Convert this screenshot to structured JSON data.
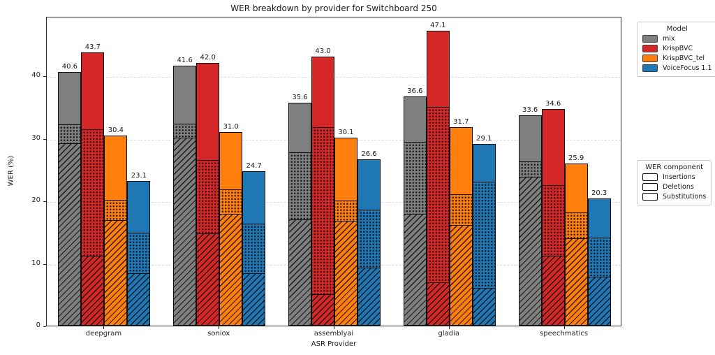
{
  "title": "WER breakdown by provider for Switchboard 250",
  "axes": {
    "xlabel": "ASR Provider",
    "ylabel": "WER (%)",
    "y_ticks": [
      0,
      10,
      20,
      30,
      40
    ]
  },
  "legend_model": {
    "title": "Model",
    "items": [
      {
        "label": "mix",
        "color": "#7f7f7f"
      },
      {
        "label": "KrispBVC",
        "color": "#d62728"
      },
      {
        "label": "KrispBVC_tel",
        "color": "#ff7f0e"
      },
      {
        "label": "VoiceFocus 1.1",
        "color": "#1f77b4"
      }
    ]
  },
  "legend_component": {
    "title": "WER component",
    "items": [
      {
        "label": "Insertions",
        "pattern": "diagonal-hatch"
      },
      {
        "label": "Deletions",
        "pattern": "dots"
      },
      {
        "label": "Substitutions",
        "pattern": "plain"
      }
    ]
  },
  "chart_data": {
    "type": "bar",
    "stacked": true,
    "stack_order_bottom_to_top": [
      "Insertions",
      "Deletions",
      "Substitutions"
    ],
    "categories": [
      "deepgram",
      "soniox",
      "assemblyai",
      "gladia",
      "speechmatics"
    ],
    "title": "WER breakdown by provider for Switchboard 250",
    "xlabel": "ASR Provider",
    "ylabel": "WER (%)",
    "ylim": [
      0,
      49.5
    ],
    "grid": true,
    "legend_position": "outside-right",
    "series": [
      {
        "name": "mix",
        "color": "#7f7f7f",
        "totals": [
          40.6,
          41.6,
          35.6,
          36.6,
          33.6
        ],
        "components": {
          "Insertions": [
            29.2,
            30.1,
            17.0,
            17.9,
            23.9
          ],
          "Deletions": [
            3.1,
            2.2,
            10.8,
            11.6,
            2.4
          ],
          "Substitutions": [
            8.3,
            9.3,
            7.8,
            7.1,
            7.3
          ]
        }
      },
      {
        "name": "KrispBVC",
        "color": "#d62728",
        "totals": [
          43.7,
          42.0,
          43.0,
          47.1,
          34.6
        ],
        "components": {
          "Insertions": [
            11.1,
            14.7,
            4.9,
            6.9,
            11.1
          ],
          "Deletions": [
            20.4,
            11.8,
            26.9,
            28.1,
            11.4
          ],
          "Substitutions": [
            12.2,
            15.5,
            11.2,
            12.1,
            12.1
          ]
        }
      },
      {
        "name": "KrispBVC_tel",
        "color": "#ff7f0e",
        "totals": [
          30.4,
          31.0,
          30.1,
          31.7,
          25.9
        ],
        "components": {
          "Insertions": [
            16.9,
            17.9,
            16.8,
            16.1,
            14.0
          ],
          "Deletions": [
            3.2,
            3.9,
            3.2,
            4.9,
            4.1
          ],
          "Substitutions": [
            10.3,
            9.2,
            10.1,
            10.7,
            7.8
          ]
        }
      },
      {
        "name": "VoiceFocus 1.1",
        "color": "#1f77b4",
        "totals": [
          23.1,
          24.7,
          26.6,
          29.1,
          20.3
        ],
        "components": {
          "Insertions": [
            8.4,
            8.3,
            9.2,
            6.0,
            7.8
          ],
          "Deletions": [
            6.5,
            8.0,
            9.4,
            17.1,
            6.3
          ],
          "Substitutions": [
            8.2,
            8.4,
            8.0,
            6.0,
            6.2
          ]
        }
      }
    ]
  }
}
